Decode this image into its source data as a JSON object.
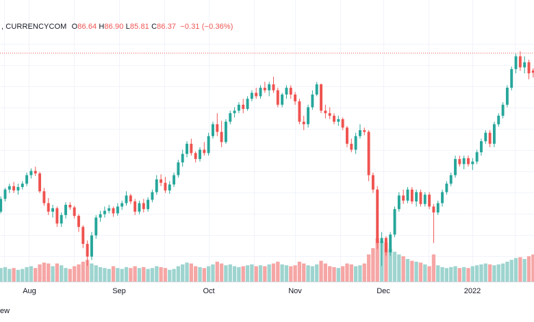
{
  "legend": {
    "source": ", CURRENCYCOM",
    "open_label": "O",
    "open": "86.64",
    "high_label": "H",
    "high": "86.90",
    "low_label": "L",
    "low": "85.81",
    "close_label": "C",
    "close": "86.37",
    "change": "−0.31 (−0.36%)"
  },
  "footer_text": "ew",
  "colors": {
    "up": "#26a69a",
    "down": "#ef5350",
    "up_volume": "#9ed4cf",
    "down_volume": "#f5a6a5",
    "grid": "#f0f3fa",
    "last_price_line": "#ef5350"
  },
  "chart_data": {
    "type": "candlestick",
    "x_tick_labels": [
      "Aug",
      "Sep",
      "Oct",
      "Nov",
      "Dec",
      "2022"
    ],
    "last_close": 86.37,
    "ylim": [
      62.0,
      90.5
    ],
    "volume_max": 100,
    "candles": [
      [
        70.0,
        71.8,
        69.8,
        71.5,
        30
      ],
      [
        71.5,
        72.8,
        71.2,
        72.6,
        32
      ],
      [
        72.6,
        73.3,
        72.2,
        73.0,
        28
      ],
      [
        73.0,
        73.5,
        72.2,
        72.5,
        30
      ],
      [
        72.5,
        73.3,
        72.0,
        72.9,
        26
      ],
      [
        72.9,
        73.6,
        72.6,
        73.3,
        28
      ],
      [
        73.3,
        74.6,
        73.0,
        74.3,
        32
      ],
      [
        74.3,
        75.1,
        73.9,
        74.8,
        34
      ],
      [
        74.8,
        75.3,
        74.2,
        74.5,
        30
      ],
      [
        74.5,
        74.7,
        72.2,
        72.4,
        38
      ],
      [
        72.4,
        72.8,
        70.7,
        71.0,
        42
      ],
      [
        71.0,
        71.6,
        69.6,
        70.0,
        40
      ],
      [
        70.0,
        70.8,
        69.3,
        70.4,
        34
      ],
      [
        70.4,
        70.6,
        68.2,
        68.6,
        40
      ],
      [
        68.6,
        69.9,
        68.2,
        69.6,
        36
      ],
      [
        69.6,
        71.1,
        69.2,
        70.8,
        30
      ],
      [
        70.8,
        71.1,
        70.2,
        70.5,
        28
      ],
      [
        70.5,
        70.7,
        69.2,
        69.5,
        34
      ],
      [
        69.5,
        69.7,
        67.6,
        68.2,
        38
      ],
      [
        68.2,
        68.4,
        65.7,
        66.2,
        44
      ],
      [
        66.2,
        66.6,
        63.6,
        64.7,
        48
      ],
      [
        64.7,
        67.6,
        64.3,
        67.2,
        40
      ],
      [
        67.2,
        69.6,
        66.8,
        69.3,
        36
      ],
      [
        69.3,
        70.1,
        68.8,
        69.7,
        32
      ],
      [
        69.7,
        70.6,
        69.3,
        70.1,
        30
      ],
      [
        70.1,
        70.8,
        69.8,
        70.4,
        28
      ],
      [
        70.4,
        70.6,
        69.4,
        69.8,
        34
      ],
      [
        69.8,
        71.0,
        69.5,
        70.6,
        30
      ],
      [
        70.6,
        71.3,
        70.2,
        71.0,
        28
      ],
      [
        71.0,
        72.4,
        70.7,
        71.9,
        32
      ],
      [
        71.9,
        72.1,
        70.9,
        71.2,
        30
      ],
      [
        71.2,
        71.5,
        69.6,
        70.0,
        34
      ],
      [
        70.0,
        71.3,
        69.7,
        71.0,
        30
      ],
      [
        71.0,
        71.5,
        69.9,
        70.3,
        32
      ],
      [
        70.3,
        71.7,
        70.0,
        71.4,
        28
      ],
      [
        71.4,
        72.6,
        71.1,
        72.3,
        30
      ],
      [
        72.3,
        74.3,
        72.0,
        73.8,
        34
      ],
      [
        73.8,
        74.4,
        73.0,
        73.4,
        32
      ],
      [
        73.4,
        74.1,
        72.2,
        72.5,
        30
      ],
      [
        72.5,
        73.6,
        72.1,
        73.2,
        26
      ],
      [
        73.2,
        74.6,
        72.9,
        74.3,
        28
      ],
      [
        74.3,
        76.1,
        74.0,
        75.8,
        34
      ],
      [
        75.8,
        77.3,
        75.3,
        76.8,
        38
      ],
      [
        76.8,
        78.3,
        76.4,
        78.0,
        42
      ],
      [
        78.0,
        78.6,
        76.6,
        76.9,
        40
      ],
      [
        76.9,
        77.1,
        75.8,
        76.2,
        34
      ],
      [
        76.2,
        77.6,
        75.9,
        77.3,
        32
      ],
      [
        77.3,
        78.2,
        76.6,
        76.9,
        30
      ],
      [
        76.9,
        79.3,
        76.6,
        78.9,
        34
      ],
      [
        78.9,
        80.6,
        78.6,
        80.3,
        38
      ],
      [
        80.3,
        81.6,
        78.9,
        79.4,
        44
      ],
      [
        79.4,
        80.7,
        77.6,
        78.2,
        40
      ],
      [
        78.2,
        80.9,
        78.0,
        80.6,
        36
      ],
      [
        80.6,
        81.9,
        80.3,
        81.6,
        38
      ],
      [
        81.6,
        82.3,
        81.1,
        81.9,
        34
      ],
      [
        81.9,
        82.9,
        81.6,
        82.6,
        32
      ],
      [
        82.6,
        83.3,
        81.6,
        82.1,
        34
      ],
      [
        82.1,
        83.6,
        81.9,
        83.3,
        36
      ],
      [
        83.3,
        84.3,
        83.0,
        84.0,
        38
      ],
      [
        84.0,
        84.6,
        83.3,
        83.6,
        34
      ],
      [
        83.6,
        84.9,
        83.3,
        84.6,
        36
      ],
      [
        84.6,
        85.3,
        84.0,
        84.3,
        34
      ],
      [
        84.3,
        85.3,
        83.6,
        85.0,
        38
      ],
      [
        85.0,
        85.9,
        84.0,
        84.3,
        40
      ],
      [
        84.3,
        84.6,
        82.3,
        82.6,
        44
      ],
      [
        82.6,
        84.0,
        82.3,
        83.8,
        38
      ],
      [
        83.8,
        84.9,
        83.3,
        84.6,
        36
      ],
      [
        84.6,
        84.9,
        83.3,
        83.8,
        34
      ],
      [
        83.8,
        84.1,
        82.6,
        83.0,
        36
      ],
      [
        83.0,
        83.3,
        80.3,
        80.6,
        44
      ],
      [
        80.6,
        81.3,
        79.6,
        80.3,
        40
      ],
      [
        80.3,
        82.6,
        79.9,
        82.3,
        36
      ],
      [
        82.3,
        84.3,
        82.0,
        83.8,
        34
      ],
      [
        83.8,
        85.3,
        83.6,
        85.0,
        38
      ],
      [
        85.0,
        85.1,
        81.6,
        81.9,
        46
      ],
      [
        81.9,
        82.6,
        81.0,
        81.6,
        40
      ],
      [
        81.6,
        82.3,
        80.9,
        81.3,
        34
      ],
      [
        81.3,
        81.6,
        80.3,
        80.6,
        32
      ],
      [
        80.6,
        81.3,
        80.1,
        80.9,
        30
      ],
      [
        80.9,
        81.1,
        79.6,
        79.9,
        34
      ],
      [
        79.9,
        80.1,
        77.6,
        78.0,
        40
      ],
      [
        78.0,
        78.6,
        77.0,
        77.3,
        38
      ],
      [
        77.3,
        79.3,
        76.8,
        78.9,
        34
      ],
      [
        78.9,
        80.3,
        78.6,
        79.6,
        36
      ],
      [
        79.6,
        79.9,
        79.0,
        79.4,
        40
      ],
      [
        79.4,
        79.6,
        73.6,
        74.3,
        60
      ],
      [
        74.3,
        74.6,
        72.2,
        72.6,
        74
      ],
      [
        72.6,
        73.0,
        65.6,
        66.3,
        96
      ],
      [
        66.3,
        67.6,
        63.6,
        66.9,
        90
      ],
      [
        66.9,
        67.1,
        64.8,
        65.2,
        86
      ],
      [
        65.2,
        67.6,
        64.8,
        67.3,
        72
      ],
      [
        67.3,
        70.6,
        67.0,
        70.3,
        66
      ],
      [
        70.3,
        72.3,
        70.0,
        71.9,
        60
      ],
      [
        71.9,
        72.6,
        70.9,
        71.3,
        56
      ],
      [
        71.3,
        72.9,
        71.0,
        72.6,
        50
      ],
      [
        72.6,
        72.9,
        70.9,
        71.2,
        46
      ],
      [
        71.2,
        72.6,
        70.6,
        72.3,
        44
      ],
      [
        72.3,
        72.6,
        70.6,
        70.9,
        42
      ],
      [
        70.9,
        72.3,
        70.6,
        72.0,
        38
      ],
      [
        72.0,
        72.3,
        70.3,
        70.6,
        34
      ],
      [
        70.6,
        70.9,
        66.3,
        69.9,
        60
      ],
      [
        69.9,
        71.3,
        69.6,
        71.0,
        36
      ],
      [
        71.0,
        72.6,
        70.6,
        72.3,
        32
      ],
      [
        72.3,
        73.6,
        72.0,
        73.3,
        30
      ],
      [
        73.3,
        74.6,
        73.0,
        74.3,
        32
      ],
      [
        74.3,
        76.6,
        74.0,
        76.2,
        34
      ],
      [
        76.2,
        76.6,
        75.3,
        75.6,
        30
      ],
      [
        75.6,
        76.6,
        75.0,
        76.3,
        32
      ],
      [
        76.3,
        76.6,
        75.3,
        75.6,
        30
      ],
      [
        75.6,
        76.3,
        74.9,
        75.9,
        34
      ],
      [
        75.9,
        77.3,
        75.6,
        77.0,
        36
      ],
      [
        77.0,
        78.6,
        76.6,
        78.3,
        38
      ],
      [
        78.3,
        79.6,
        78.0,
        79.3,
        40
      ],
      [
        79.3,
        79.6,
        77.6,
        78.0,
        38
      ],
      [
        78.0,
        80.6,
        77.6,
        80.3,
        36
      ],
      [
        80.3,
        81.6,
        80.0,
        81.3,
        38
      ],
      [
        81.3,
        82.9,
        81.0,
        82.6,
        40
      ],
      [
        82.6,
        84.9,
        82.3,
        84.6,
        44
      ],
      [
        84.6,
        87.1,
        84.3,
        86.8,
        48
      ],
      [
        86.8,
        88.6,
        86.3,
        88.3,
        52
      ],
      [
        88.3,
        88.9,
        86.6,
        87.0,
        54
      ],
      [
        87.0,
        88.3,
        86.3,
        87.6,
        50
      ],
      [
        87.6,
        87.9,
        85.6,
        86.3,
        56
      ],
      [
        86.64,
        86.9,
        85.81,
        86.37,
        60
      ]
    ]
  }
}
